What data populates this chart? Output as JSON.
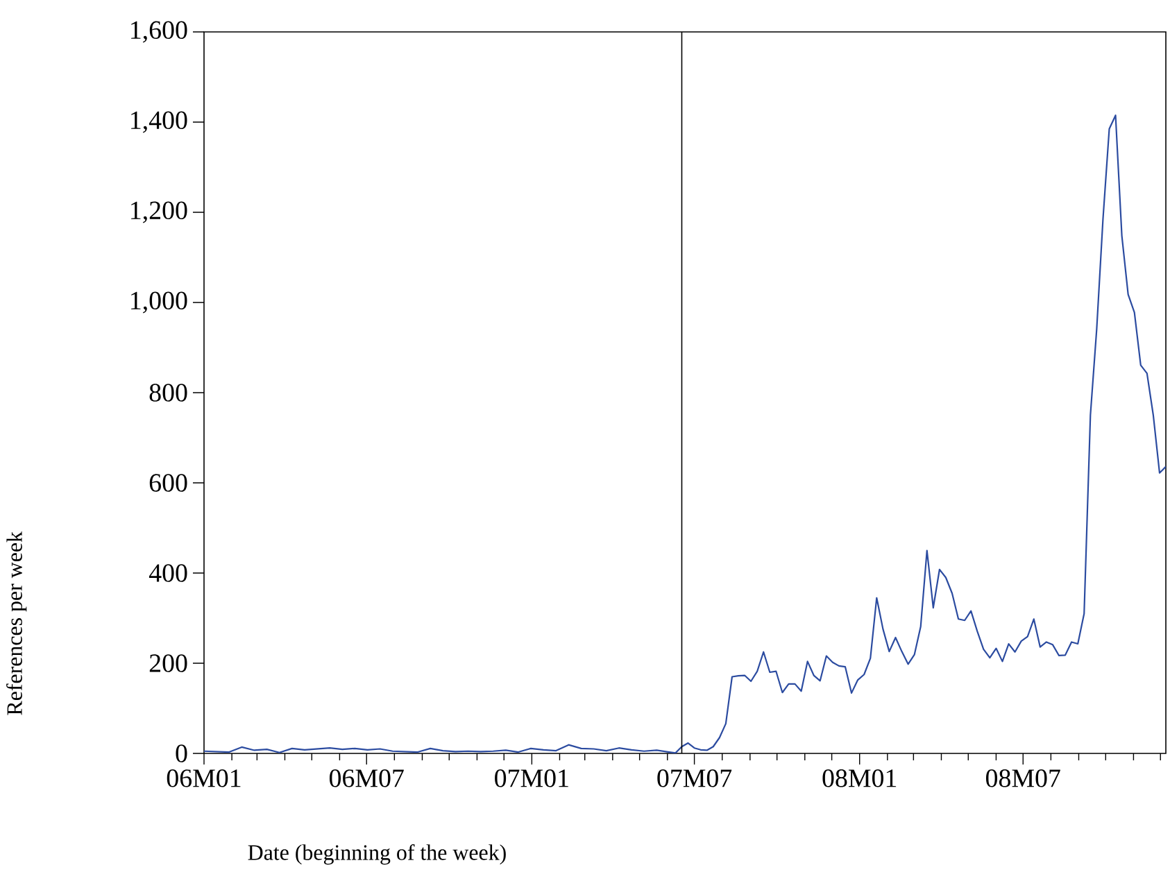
{
  "chart_data": {
    "type": "line",
    "xlabel": "Date (beginning of the week)",
    "ylabel": "References per week",
    "x": [
      "2006-01-01",
      "2006-01-15",
      "2006-01-29",
      "2006-02-12",
      "2006-02-26",
      "2006-03-12",
      "2006-03-26",
      "2006-04-09",
      "2006-04-23",
      "2006-05-07",
      "2006-05-21",
      "2006-06-04",
      "2006-06-18",
      "2006-07-02",
      "2006-07-16",
      "2006-07-30",
      "2006-08-13",
      "2006-08-27",
      "2006-09-10",
      "2006-09-24",
      "2006-10-08",
      "2006-10-22",
      "2006-11-05",
      "2006-11-19",
      "2006-12-03",
      "2006-12-17",
      "2006-12-31",
      "2007-01-14",
      "2007-01-28",
      "2007-02-11",
      "2007-02-25",
      "2007-03-11",
      "2007-03-25",
      "2007-04-08",
      "2007-04-22",
      "2007-05-06",
      "2007-05-20",
      "2007-06-03",
      "2007-06-10",
      "2007-06-17",
      "2007-06-24",
      "2007-07-01",
      "2007-07-08",
      "2007-07-15",
      "2007-07-22",
      "2007-07-29",
      "2007-08-05",
      "2007-08-12",
      "2007-08-19",
      "2007-08-26",
      "2007-09-02",
      "2007-09-09",
      "2007-09-16",
      "2007-09-23",
      "2007-09-30",
      "2007-10-07",
      "2007-10-14",
      "2007-10-21",
      "2007-10-28",
      "2007-11-04",
      "2007-11-11",
      "2007-11-18",
      "2007-11-25",
      "2007-12-02",
      "2007-12-09",
      "2007-12-16",
      "2007-12-23",
      "2007-12-30",
      "2008-01-06",
      "2008-01-13",
      "2008-01-20",
      "2008-01-27",
      "2008-02-03",
      "2008-02-10",
      "2008-02-17",
      "2008-02-24",
      "2008-03-02",
      "2008-03-09",
      "2008-03-16",
      "2008-03-23",
      "2008-03-30",
      "2008-04-06",
      "2008-04-13",
      "2008-04-20",
      "2008-04-27",
      "2008-05-04",
      "2008-05-11",
      "2008-05-18",
      "2008-05-25",
      "2008-06-01",
      "2008-06-08",
      "2008-06-15",
      "2008-06-22",
      "2008-06-29",
      "2008-07-06",
      "2008-07-13",
      "2008-07-20",
      "2008-07-27",
      "2008-08-03",
      "2008-08-10",
      "2008-08-17",
      "2008-08-24",
      "2008-08-31",
      "2008-09-07",
      "2008-09-14",
      "2008-09-21",
      "2008-09-28",
      "2008-10-05",
      "2008-10-12",
      "2008-10-19",
      "2008-10-26",
      "2008-11-02",
      "2008-11-09",
      "2008-11-16",
      "2008-11-23",
      "2008-11-30",
      "2008-12-07"
    ],
    "series": [
      {
        "color": "#2b4ba0",
        "values": [
          5,
          4,
          3,
          14,
          7,
          9,
          2,
          11,
          8,
          10,
          12,
          9,
          11,
          8,
          10,
          5,
          4,
          3,
          11,
          6,
          4,
          5,
          4,
          5,
          7,
          3,
          11,
          8,
          6,
          19,
          11,
          10,
          6,
          12,
          8,
          5,
          7,
          3,
          1,
          15,
          23,
          12,
          8,
          7,
          15,
          35,
          66,
          170,
          172,
          173,
          160,
          182,
          225,
          180,
          182,
          135,
          154,
          154,
          138,
          204,
          173,
          161,
          216,
          202,
          194,
          192,
          134,
          163,
          175,
          211,
          345,
          276,
          226,
          257,
          226,
          198,
          219,
          281,
          450,
          323,
          408,
          390,
          355,
          298,
          295,
          316,
          271,
          231,
          212,
          233,
          204,
          243,
          225,
          249,
          259,
          298,
          236,
          247,
          241,
          217,
          218,
          247,
          243,
          310,
          750,
          941,
          1185,
          1385,
          1415,
          1148,
          1018,
          978,
          861,
          843,
          750,
          622,
          636
        ]
      }
    ],
    "xlim": [
      "2006-01-01",
      "2008-12-07"
    ],
    "xticks": [
      {
        "value": "2006-01",
        "label": "06M01"
      },
      {
        "value": "2006-02",
        "label": null
      },
      {
        "value": "2006-03",
        "label": null
      },
      {
        "value": "2006-04",
        "label": null
      },
      {
        "value": "2006-05",
        "label": null
      },
      {
        "value": "2006-06",
        "label": null
      },
      {
        "value": "2006-07",
        "label": "06M07"
      },
      {
        "value": "2006-08",
        "label": null
      },
      {
        "value": "2006-09",
        "label": null
      },
      {
        "value": "2006-10",
        "label": null
      },
      {
        "value": "2006-11",
        "label": null
      },
      {
        "value": "2006-12",
        "label": null
      },
      {
        "value": "2007-01",
        "label": "07M01"
      },
      {
        "value": "2007-02",
        "label": null
      },
      {
        "value": "2007-03",
        "label": null
      },
      {
        "value": "2007-04",
        "label": null
      },
      {
        "value": "2007-05",
        "label": null
      },
      {
        "value": "2007-06",
        "label": null
      },
      {
        "value": "2007-07",
        "label": "07M07"
      },
      {
        "value": "2007-08",
        "label": null
      },
      {
        "value": "2007-09",
        "label": null
      },
      {
        "value": "2007-10",
        "label": null
      },
      {
        "value": "2007-11",
        "label": null
      },
      {
        "value": "2007-12",
        "label": null
      },
      {
        "value": "2008-01",
        "label": "08M01"
      },
      {
        "value": "2008-02",
        "label": null
      },
      {
        "value": "2008-03",
        "label": null
      },
      {
        "value": "2008-04",
        "label": null
      },
      {
        "value": "2008-05",
        "label": null
      },
      {
        "value": "2008-06",
        "label": null
      },
      {
        "value": "2008-07",
        "label": "08M07"
      },
      {
        "value": "2008-08",
        "label": null
      },
      {
        "value": "2008-09",
        "label": null
      },
      {
        "value": "2008-10",
        "label": null
      },
      {
        "value": "2008-11",
        "label": null
      },
      {
        "value": "2008-12",
        "label": null
      }
    ],
    "ylim": [
      0,
      1600
    ],
    "yticks": [
      0,
      200,
      400,
      600,
      800,
      {
        "value": 1000,
        "label": "1,000"
      },
      {
        "value": 1200,
        "label": "1,200"
      },
      {
        "value": 1400,
        "label": "1,400"
      },
      {
        "value": 1600,
        "label": "1,600"
      }
    ],
    "ref_lines": [
      {
        "axis": "x",
        "value": "2007-06-17",
        "color": "#000000"
      }
    ],
    "grid": false,
    "marker": "none",
    "line_style": "solid"
  }
}
